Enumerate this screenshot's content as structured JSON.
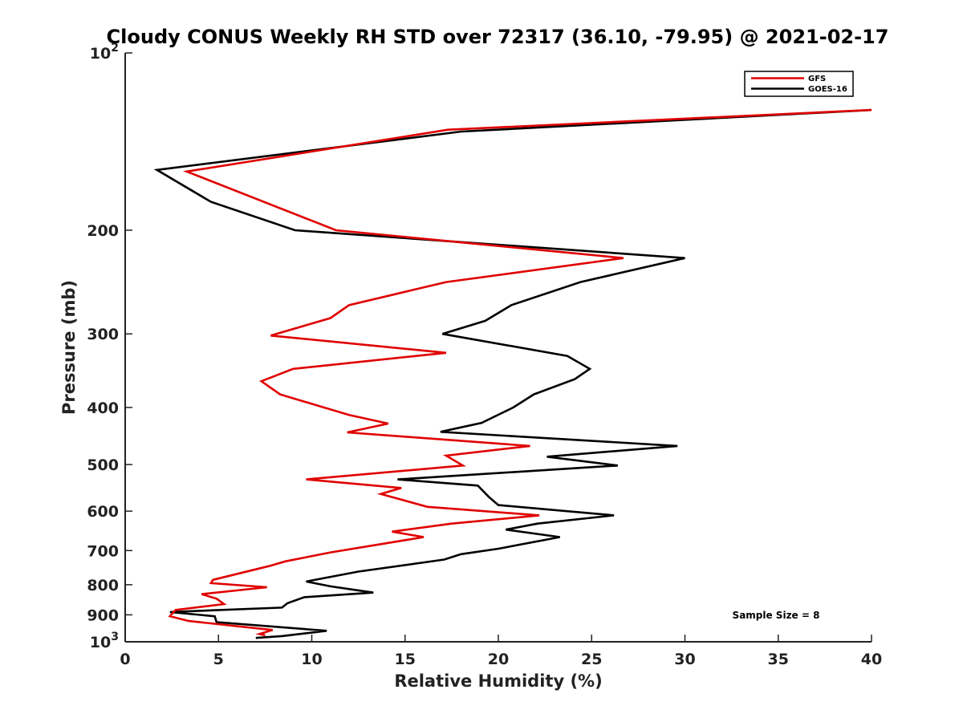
{
  "chart_data": {
    "type": "line",
    "title": "Cloudy CONUS Weekly RH STD over 72317 (36.10, -79.95) @ 2021-02-17",
    "xlabel": "Relative Humidity (%)",
    "ylabel": "Pressure (mb)",
    "xlim": [
      0,
      40
    ],
    "ylim": [
      1000,
      100
    ],
    "y_scale": "log",
    "y_reversed": true,
    "x_ticks": [
      "0",
      "5",
      "10",
      "15",
      "20",
      "25",
      "30",
      "35",
      "40"
    ],
    "y_ticks": [
      {
        "value": 100,
        "base": "10",
        "exp": "2"
      },
      {
        "value": 200,
        "label": "200"
      },
      {
        "value": 300,
        "label": "300"
      },
      {
        "value": 400,
        "label": "400"
      },
      {
        "value": 500,
        "label": "500"
      },
      {
        "value": 600,
        "label": "600"
      },
      {
        "value": 700,
        "label": "700"
      },
      {
        "value": 800,
        "label": "800"
      },
      {
        "value": 900,
        "label": "900"
      },
      {
        "value": 1000,
        "base": "10",
        "exp": "3"
      }
    ],
    "grid": false,
    "legend_position": "top-right",
    "annotation": "Sample Size = 8",
    "series": [
      {
        "name": "GFS",
        "color": "#e00000",
        "points": [
          [
            40.0,
            125
          ],
          [
            17.3,
            135
          ],
          [
            3.3,
            159
          ],
          [
            11.3,
            200
          ],
          [
            26.7,
            223
          ],
          [
            17.2,
            245
          ],
          [
            12.0,
            268
          ],
          [
            11.0,
            282
          ],
          [
            7.8,
            302
          ],
          [
            17.2,
            323
          ],
          [
            9.0,
            344
          ],
          [
            7.3,
            361
          ],
          [
            8.3,
            380
          ],
          [
            12.0,
            412
          ],
          [
            14.1,
            426
          ],
          [
            11.9,
            441
          ],
          [
            21.7,
            465
          ],
          [
            17.2,
            483
          ],
          [
            18.1,
            502
          ],
          [
            9.7,
            530
          ],
          [
            14.8,
            548
          ],
          [
            13.7,
            561
          ],
          [
            16.2,
            590
          ],
          [
            22.2,
            610
          ],
          [
            17.5,
            630
          ],
          [
            14.3,
            650
          ],
          [
            16.0,
            664
          ],
          [
            11.0,
            705
          ],
          [
            8.6,
            730
          ],
          [
            7.7,
            744
          ],
          [
            4.7,
            785
          ],
          [
            4.6,
            795
          ],
          [
            7.6,
            808
          ],
          [
            4.1,
            830
          ],
          [
            4.9,
            845
          ],
          [
            5.3,
            863
          ],
          [
            2.7,
            883
          ],
          [
            2.4,
            905
          ],
          [
            3.4,
            922
          ],
          [
            7.9,
            955
          ],
          [
            7.2,
            970
          ],
          [
            7.5,
            975
          ]
        ]
      },
      {
        "name": "GOES-16",
        "color": "#000000",
        "points": [
          [
            40.0,
            125
          ],
          [
            18.0,
            136
          ],
          [
            1.7,
            158
          ],
          [
            4.6,
            179
          ],
          [
            9.1,
            200
          ],
          [
            30.0,
            223
          ],
          [
            24.4,
            245
          ],
          [
            20.7,
            268
          ],
          [
            19.3,
            285
          ],
          [
            17.0,
            300
          ],
          [
            23.7,
            327
          ],
          [
            24.9,
            344
          ],
          [
            24.1,
            358
          ],
          [
            21.9,
            380
          ],
          [
            20.8,
            400
          ],
          [
            19.1,
            425
          ],
          [
            16.9,
            440
          ],
          [
            29.6,
            465
          ],
          [
            22.6,
            485
          ],
          [
            26.4,
            502
          ],
          [
            14.6,
            530
          ],
          [
            18.9,
            543
          ],
          [
            19.5,
            568
          ],
          [
            20.0,
            586
          ],
          [
            26.2,
            610
          ],
          [
            22.1,
            630
          ],
          [
            20.4,
            645
          ],
          [
            23.3,
            664
          ],
          [
            20.0,
            695
          ],
          [
            18.0,
            710
          ],
          [
            17.1,
            725
          ],
          [
            12.5,
            760
          ],
          [
            9.7,
            790
          ],
          [
            11.0,
            805
          ],
          [
            13.3,
            825
          ],
          [
            9.6,
            840
          ],
          [
            8.7,
            860
          ],
          [
            8.4,
            875
          ],
          [
            2.4,
            890
          ],
          [
            4.8,
            905
          ],
          [
            4.9,
            926
          ],
          [
            10.8,
            958
          ],
          [
            8.4,
            978
          ],
          [
            7.0,
            985
          ]
        ]
      }
    ]
  }
}
